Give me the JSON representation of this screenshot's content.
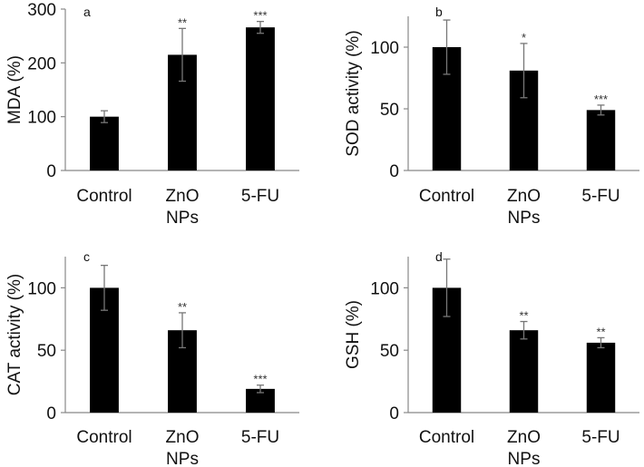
{
  "figure": {
    "colors": {
      "bar": "#000000",
      "axis": "#888888",
      "error": "#777777",
      "text": "#111111"
    }
  },
  "chart_data": [
    {
      "id": "a",
      "panel_letter": "a",
      "type": "bar",
      "title": "",
      "xlabel": "",
      "ylabel": "MDA (%)",
      "categories": [
        [
          "Control"
        ],
        [
          "ZnO",
          "NPs"
        ],
        [
          "5-FU"
        ]
      ],
      "values": [
        100,
        215,
        266
      ],
      "errors": [
        11,
        49,
        11
      ],
      "significance": [
        "",
        "**",
        "***"
      ],
      "ylim": [
        0,
        300
      ],
      "yticks": [
        0,
        100,
        200,
        300
      ],
      "grid": false,
      "legend": "none"
    },
    {
      "id": "b",
      "panel_letter": "b",
      "type": "bar",
      "title": "",
      "xlabel": "",
      "ylabel": "SOD activity (%)",
      "categories": [
        [
          "Control"
        ],
        [
          "ZnO",
          "NPs"
        ],
        [
          "5-FU"
        ]
      ],
      "values": [
        100,
        81,
        49
      ],
      "errors": [
        22,
        22,
        4
      ],
      "significance": [
        "",
        "*",
        "***"
      ],
      "ylim": [
        0,
        125
      ],
      "yticks": [
        0,
        50,
        100
      ],
      "grid": false,
      "legend": "none"
    },
    {
      "id": "c",
      "panel_letter": "c",
      "type": "bar",
      "title": "",
      "xlabel": "",
      "ylabel": "CAT activity (%)",
      "categories": [
        [
          "Control"
        ],
        [
          "ZnO",
          "NPs"
        ],
        [
          "5-FU"
        ]
      ],
      "values": [
        100,
        66,
        19
      ],
      "errors": [
        18,
        14,
        3
      ],
      "significance": [
        "",
        "**",
        "***"
      ],
      "ylim": [
        0,
        125
      ],
      "yticks": [
        0,
        50,
        100
      ],
      "grid": false,
      "legend": "none"
    },
    {
      "id": "d",
      "panel_letter": "d",
      "type": "bar",
      "title": "",
      "xlabel": "",
      "ylabel": "GSH (%)",
      "categories": [
        [
          "Control"
        ],
        [
          "ZnO",
          "NPs"
        ],
        [
          "5-FU"
        ]
      ],
      "values": [
        100,
        66,
        56
      ],
      "errors": [
        23,
        7,
        4
      ],
      "significance": [
        "",
        "**",
        "**"
      ],
      "ylim": [
        0,
        125
      ],
      "yticks": [
        0,
        50,
        100
      ],
      "grid": false,
      "legend": "none"
    }
  ]
}
